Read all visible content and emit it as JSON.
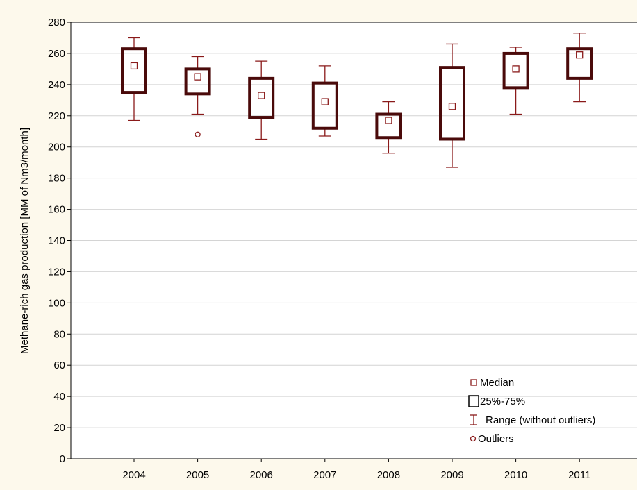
{
  "chart_data": {
    "type": "boxplot",
    "categories": [
      "2004",
      "2005",
      "2006",
      "2007",
      "2008",
      "2009",
      "2010",
      "2011"
    ],
    "ylabel": "Methane-rich gas production [MM of Nm3/month]",
    "ylim": [
      0,
      280
    ],
    "yticks": [
      "0",
      "20",
      "40",
      "60",
      "80",
      "100",
      "120",
      "140",
      "160",
      "180",
      "200",
      "220",
      "240",
      "260",
      "280"
    ],
    "grid": "horizontal",
    "legend_position": "bottom-right",
    "boxes": [
      {
        "median": 252,
        "q1": 235,
        "q3": 263,
        "min": 217,
        "max": 270,
        "outliers": []
      },
      {
        "median": 245,
        "q1": 234,
        "q3": 250,
        "min": 221,
        "max": 258,
        "outliers": [
          208
        ]
      },
      {
        "median": 233,
        "q1": 219,
        "q3": 244,
        "min": 205,
        "max": 255,
        "outliers": []
      },
      {
        "median": 229,
        "q1": 212,
        "q3": 241,
        "min": 207,
        "max": 252,
        "outliers": []
      },
      {
        "median": 217,
        "q1": 206,
        "q3": 221,
        "min": 196,
        "max": 229,
        "outliers": []
      },
      {
        "median": 226,
        "q1": 205,
        "q3": 251,
        "min": 187,
        "max": 266,
        "outliers": []
      },
      {
        "median": 250,
        "q1": 238,
        "q3": 260,
        "min": 221,
        "max": 264,
        "outliers": []
      },
      {
        "median": 259,
        "q1": 244,
        "q3": 263,
        "min": 229,
        "max": 273,
        "outliers": []
      }
    ],
    "legend": [
      {
        "key": "median",
        "label": "Median"
      },
      {
        "key": "box",
        "label": "25%-75%"
      },
      {
        "key": "range",
        "label": "Range (without outliers)"
      },
      {
        "key": "outlier",
        "label": "Outliers"
      }
    ],
    "colors": {
      "box": "#4a0a0a",
      "whisker": "#8a1a1a",
      "median": "#8a1a1a",
      "grid": "#d4d4d4",
      "plot_bg": "#ffffff",
      "page_bg": "#fdf9ec"
    }
  }
}
